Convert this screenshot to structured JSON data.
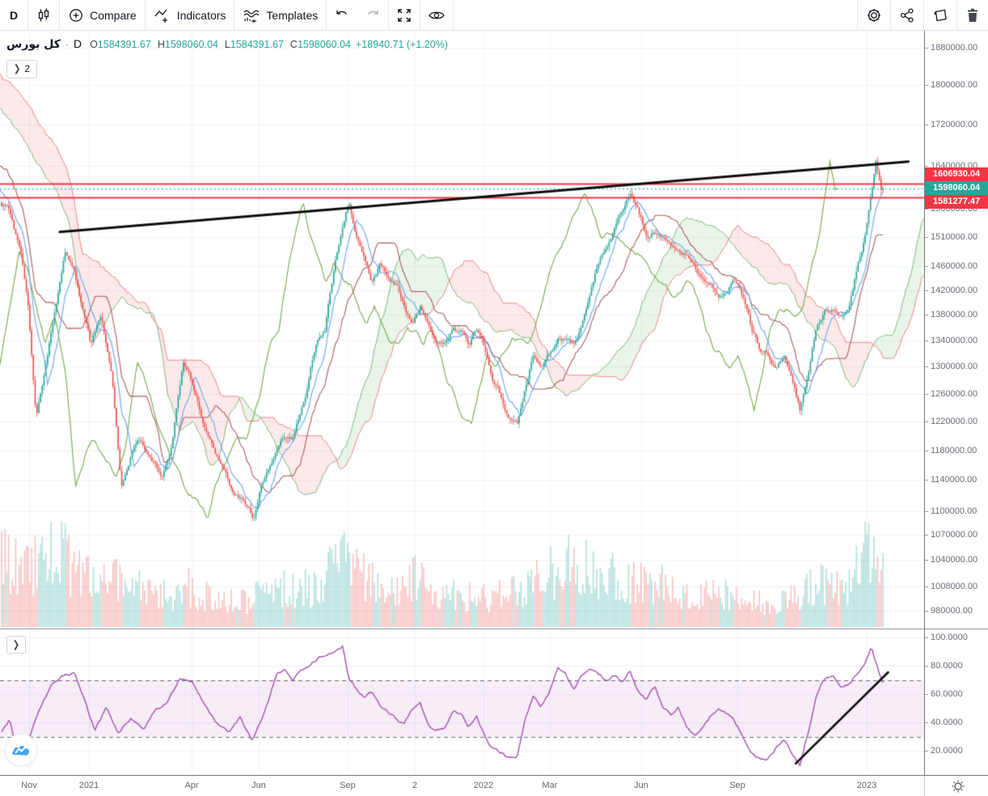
{
  "toolbar": {
    "interval": "D",
    "compare_label": "Compare",
    "indicators_label": "Indicators",
    "templates_label": "Templates"
  },
  "legend": {
    "symbol": "كل بورس",
    "separator": "·",
    "interval": "D",
    "open_label": "O",
    "open": "1584391.67",
    "high_label": "H",
    "high": "1598060.04",
    "low_label": "L",
    "low": "1584391.67",
    "close_label": "C",
    "close": "1598060.04",
    "change": "+18940.71 (+1.20%)",
    "collapsed_count": "2",
    "collapse_arrow": "❯"
  },
  "colors": {
    "up": "#26a69a",
    "down": "#ef5350",
    "volume_up": "rgba(38,166,154,0.34)",
    "volume_down": "rgba(239,83,80,0.34)",
    "tenkan": "#74abf2",
    "kijun": "#ad5c5c",
    "chikou": "#73a948",
    "cloud_up_fill": "rgba(120,190,116,0.16)",
    "cloud_up_border": "rgba(96,168,90,0.8)",
    "cloud_down_fill": "rgba(243,116,116,0.16)",
    "cloud_down_border": "rgba(234,102,102,0.8)",
    "level_line": "#f23645",
    "current_line": "#26a69a",
    "rsi_line": "#a64fae",
    "rsi_band_fill": "rgba(166,79,174,0.10)",
    "rsi_band_line": "#6a6d78",
    "trendline": "#0c0c0c",
    "grid": "#eef2f9",
    "axis_text": "#686d78",
    "label_level_bg": "#f23645",
    "label_current_bg": "#26a69a"
  },
  "axes": {
    "price_ticks": [
      [
        "1880000.00",
        1880000
      ],
      [
        "1800000.00",
        1800000
      ],
      [
        "1720000.00",
        1720000
      ],
      [
        "1640000.00",
        1640000
      ],
      [
        "1560000.00",
        1560000
      ],
      [
        "1510000.00",
        1510000
      ],
      [
        "1460000.00",
        1460000
      ],
      [
        "1420000.00",
        1420000
      ],
      [
        "1380000.00",
        1380000
      ],
      [
        "1340000.00",
        1340000
      ],
      [
        "1300000.00",
        1300000
      ],
      [
        "1260000.00",
        1260000
      ],
      [
        "1220000.00",
        1220000
      ],
      [
        "1180000.00",
        1180000
      ],
      [
        "1140000.00",
        1140000
      ],
      [
        "1100000.00",
        1100000
      ],
      [
        "1070000.00",
        1070000
      ],
      [
        "1040000.00",
        1040000
      ],
      [
        "1008000.00",
        1008000
      ],
      [
        "980000.00",
        980000
      ]
    ],
    "rsi_ticks": [
      [
        "100.0000",
        100
      ],
      [
        "80.0000",
        80
      ],
      [
        "60.0000",
        60
      ],
      [
        "40.0000",
        40
      ],
      [
        "20.0000",
        20
      ]
    ],
    "time_ticks": [
      [
        "Nov",
        36
      ],
      [
        "2021",
        110
      ],
      [
        "Apr",
        237
      ],
      [
        "Jun",
        320
      ],
      [
        "Sep",
        430
      ],
      [
        "2",
        513
      ],
      [
        "2022",
        598
      ],
      [
        "Mar",
        680
      ],
      [
        "Jun",
        793
      ],
      [
        "Sep",
        912
      ],
      [
        "2023",
        1072
      ]
    ]
  },
  "price_labels": [
    {
      "text": "1606930.04",
      "price": 1606930.04,
      "type": "level"
    },
    {
      "text": "1598060.04",
      "price": 1598060.04,
      "type": "current"
    },
    {
      "text": "1581277.47",
      "price": 1581277.47,
      "type": "level"
    }
  ],
  "chart_data": {
    "type": "candlestick",
    "symbol": "كل بورس",
    "interval": "D",
    "scale": "log",
    "overlays": [
      "ichimoku-cloud",
      "volume"
    ],
    "lower_pane": "rsi",
    "price_axis_visible_range": [
      962000,
      1900000
    ],
    "rsi_axis_visible_range": [
      4,
      103
    ],
    "rsi_band": [
      30,
      70
    ],
    "ohlc_last": {
      "open": 1584391.67,
      "high": 1598060.04,
      "low": 1584391.67,
      "close": 1598060.04,
      "change": 18940.71,
      "change_pct": 1.2
    },
    "horizontal_lines": [
      {
        "price": 1606930.04,
        "style": "solid",
        "role": "resistance"
      },
      {
        "price": 1581277.47,
        "style": "solid",
        "role": "support"
      },
      {
        "price": 1598060.04,
        "style": "dashed",
        "role": "last-price"
      }
    ],
    "trendlines": [
      {
        "pane": "main",
        "points": [
          [
            0.066,
            1519000
          ],
          [
            1.029,
            1648000
          ]
        ]
      },
      {
        "pane": "rsi",
        "points": [
          [
            0.901,
            10.9
          ],
          [
            1.006,
            75.4
          ]
        ]
      }
    ],
    "close_path": [
      [
        0.005,
        1590000
      ],
      [
        0.012,
        1560000
      ],
      [
        0.021,
        1505000
      ],
      [
        0.03,
        1410000
      ],
      [
        0.039,
        1235000
      ],
      [
        0.049,
        1300000
      ],
      [
        0.058,
        1370000
      ],
      [
        0.072,
        1480000
      ],
      [
        0.081,
        1455000
      ],
      [
        0.09,
        1400000
      ],
      [
        0.101,
        1330000
      ],
      [
        0.113,
        1380000
      ],
      [
        0.125,
        1290000
      ],
      [
        0.136,
        1135000
      ],
      [
        0.147,
        1180000
      ],
      [
        0.156,
        1195000
      ],
      [
        0.168,
        1170000
      ],
      [
        0.182,
        1150000
      ],
      [
        0.193,
        1192000
      ],
      [
        0.206,
        1310000
      ],
      [
        0.218,
        1270000
      ],
      [
        0.232,
        1210000
      ],
      [
        0.246,
        1170000
      ],
      [
        0.26,
        1125000
      ],
      [
        0.275,
        1110000
      ],
      [
        0.286,
        1090000
      ],
      [
        0.294,
        1135000
      ],
      [
        0.307,
        1172000
      ],
      [
        0.319,
        1196000
      ],
      [
        0.33,
        1190000
      ],
      [
        0.344,
        1250000
      ],
      [
        0.356,
        1335000
      ],
      [
        0.367,
        1368000
      ],
      [
        0.378,
        1470000
      ],
      [
        0.387,
        1540000
      ],
      [
        0.394,
        1585000
      ],
      [
        0.402,
        1520000
      ],
      [
        0.411,
        1475000
      ],
      [
        0.42,
        1432000
      ],
      [
        0.429,
        1460000
      ],
      [
        0.438,
        1445000
      ],
      [
        0.448,
        1430000
      ],
      [
        0.457,
        1390000
      ],
      [
        0.466,
        1365000
      ],
      [
        0.475,
        1390000
      ],
      [
        0.484,
        1360000
      ],
      [
        0.493,
        1335000
      ],
      [
        0.502,
        1330000
      ],
      [
        0.512,
        1362000
      ],
      [
        0.521,
        1355000
      ],
      [
        0.53,
        1335000
      ],
      [
        0.539,
        1362000
      ],
      [
        0.548,
        1330000
      ],
      [
        0.557,
        1290000
      ],
      [
        0.567,
        1262000
      ],
      [
        0.576,
        1230000
      ],
      [
        0.585,
        1218000
      ],
      [
        0.594,
        1270000
      ],
      [
        0.603,
        1320000
      ],
      [
        0.612,
        1300000
      ],
      [
        0.622,
        1322000
      ],
      [
        0.631,
        1345000
      ],
      [
        0.64,
        1340000
      ],
      [
        0.649,
        1325000
      ],
      [
        0.658,
        1360000
      ],
      [
        0.667,
        1408000
      ],
      [
        0.677,
        1465000
      ],
      [
        0.686,
        1495000
      ],
      [
        0.695,
        1525000
      ],
      [
        0.704,
        1560000
      ],
      [
        0.713,
        1588000
      ],
      [
        0.722,
        1555000
      ],
      [
        0.732,
        1512000
      ],
      [
        0.741,
        1525000
      ],
      [
        0.75,
        1512000
      ],
      [
        0.759,
        1500000
      ],
      [
        0.768,
        1488000
      ],
      [
        0.778,
        1476000
      ],
      [
        0.787,
        1460000
      ],
      [
        0.796,
        1442000
      ],
      [
        0.805,
        1435000
      ],
      [
        0.814,
        1422000
      ],
      [
        0.823,
        1438000
      ],
      [
        0.833,
        1445000
      ],
      [
        0.842,
        1412000
      ],
      [
        0.851,
        1360000
      ],
      [
        0.86,
        1330000
      ],
      [
        0.869,
        1318000
      ],
      [
        0.879,
        1298000
      ],
      [
        0.888,
        1318000
      ],
      [
        0.897,
        1288000
      ],
      [
        0.906,
        1238000
      ],
      [
        0.915,
        1296000
      ],
      [
        0.924,
        1366000
      ],
      [
        0.933,
        1392000
      ],
      [
        0.943,
        1398000
      ],
      [
        0.952,
        1392000
      ],
      [
        0.961,
        1405000
      ],
      [
        0.97,
        1460000
      ],
      [
        0.98,
        1518000
      ],
      [
        0.987,
        1588000
      ],
      [
        0.992,
        1640000
      ],
      [
        0.998,
        1585000
      ],
      [
        1.0,
        1598060
      ]
    ],
    "rsi_path": [
      [
        0.0,
        33
      ],
      [
        0.009,
        42
      ],
      [
        0.018,
        16
      ],
      [
        0.028,
        25
      ],
      [
        0.041,
        47
      ],
      [
        0.055,
        65
      ],
      [
        0.069,
        73
      ],
      [
        0.083,
        74
      ],
      [
        0.092,
        59
      ],
      [
        0.106,
        33
      ],
      [
        0.119,
        50
      ],
      [
        0.133,
        30
      ],
      [
        0.147,
        42
      ],
      [
        0.161,
        33
      ],
      [
        0.174,
        47
      ],
      [
        0.188,
        53
      ],
      [
        0.202,
        70
      ],
      [
        0.216,
        67
      ],
      [
        0.229,
        53
      ],
      [
        0.243,
        39
      ],
      [
        0.257,
        33
      ],
      [
        0.271,
        45
      ],
      [
        0.284,
        27
      ],
      [
        0.298,
        47
      ],
      [
        0.312,
        73
      ],
      [
        0.321,
        76
      ],
      [
        0.33,
        67
      ],
      [
        0.339,
        76
      ],
      [
        0.349,
        79
      ],
      [
        0.358,
        84
      ],
      [
        0.367,
        88
      ],
      [
        0.376,
        91
      ],
      [
        0.387,
        94
      ],
      [
        0.394,
        72
      ],
      [
        0.404,
        64
      ],
      [
        0.413,
        60
      ],
      [
        0.42,
        63
      ],
      [
        0.429,
        52
      ],
      [
        0.438,
        48
      ],
      [
        0.448,
        42
      ],
      [
        0.457,
        38
      ],
      [
        0.466,
        48
      ],
      [
        0.475,
        53
      ],
      [
        0.484,
        40
      ],
      [
        0.493,
        35
      ],
      [
        0.502,
        38
      ],
      [
        0.512,
        50
      ],
      [
        0.521,
        46
      ],
      [
        0.53,
        36
      ],
      [
        0.539,
        44
      ],
      [
        0.548,
        30
      ],
      [
        0.557,
        22
      ],
      [
        0.567,
        18
      ],
      [
        0.576,
        14
      ],
      [
        0.585,
        16
      ],
      [
        0.594,
        42
      ],
      [
        0.603,
        58
      ],
      [
        0.612,
        50
      ],
      [
        0.622,
        60
      ],
      [
        0.631,
        76
      ],
      [
        0.64,
        73
      ],
      [
        0.649,
        62
      ],
      [
        0.658,
        72
      ],
      [
        0.667,
        78
      ],
      [
        0.677,
        74
      ],
      [
        0.686,
        70
      ],
      [
        0.695,
        73
      ],
      [
        0.704,
        70
      ],
      [
        0.713,
        77
      ],
      [
        0.722,
        62
      ],
      [
        0.732,
        55
      ],
      [
        0.741,
        64
      ],
      [
        0.75,
        50
      ],
      [
        0.759,
        44
      ],
      [
        0.768,
        52
      ],
      [
        0.778,
        38
      ],
      [
        0.787,
        30
      ],
      [
        0.796,
        36
      ],
      [
        0.805,
        44
      ],
      [
        0.814,
        48
      ],
      [
        0.823,
        46
      ],
      [
        0.833,
        38
      ],
      [
        0.842,
        28
      ],
      [
        0.851,
        20
      ],
      [
        0.86,
        15
      ],
      [
        0.869,
        12
      ],
      [
        0.879,
        22
      ],
      [
        0.888,
        26
      ],
      [
        0.897,
        18
      ],
      [
        0.906,
        10
      ],
      [
        0.915,
        33
      ],
      [
        0.924,
        56
      ],
      [
        0.933,
        70
      ],
      [
        0.943,
        72
      ],
      [
        0.952,
        64
      ],
      [
        0.961,
        66
      ],
      [
        0.97,
        74
      ],
      [
        0.98,
        82
      ],
      [
        0.987,
        93
      ],
      [
        0.995,
        76
      ],
      [
        1.0,
        67
      ]
    ],
    "volume_path": [
      [
        0.005,
        0.75
      ],
      [
        0.018,
        0.55
      ],
      [
        0.032,
        0.6
      ],
      [
        0.046,
        0.65
      ],
      [
        0.06,
        0.95
      ],
      [
        0.073,
        0.7
      ],
      [
        0.087,
        0.5
      ],
      [
        0.101,
        0.55
      ],
      [
        0.115,
        0.45
      ],
      [
        0.128,
        0.5
      ],
      [
        0.142,
        0.35
      ],
      [
        0.156,
        0.4
      ],
      [
        0.17,
        0.3
      ],
      [
        0.183,
        0.35
      ],
      [
        0.197,
        0.3
      ],
      [
        0.211,
        0.4
      ],
      [
        0.225,
        0.3
      ],
      [
        0.239,
        0.35
      ],
      [
        0.252,
        0.3
      ],
      [
        0.266,
        0.25
      ],
      [
        0.28,
        0.28
      ],
      [
        0.294,
        0.32
      ],
      [
        0.307,
        0.3
      ],
      [
        0.321,
        0.4
      ],
      [
        0.335,
        0.35
      ],
      [
        0.349,
        0.4
      ],
      [
        0.362,
        0.45
      ],
      [
        0.376,
        0.55
      ],
      [
        0.39,
        0.65
      ],
      [
        0.404,
        0.55
      ],
      [
        0.417,
        0.45
      ],
      [
        0.431,
        0.42
      ],
      [
        0.445,
        0.4
      ],
      [
        0.459,
        0.38
      ],
      [
        0.472,
        0.5
      ],
      [
        0.486,
        0.35
      ],
      [
        0.5,
        0.3
      ],
      [
        0.514,
        0.32
      ],
      [
        0.528,
        0.3
      ],
      [
        0.541,
        0.28
      ],
      [
        0.555,
        0.3
      ],
      [
        0.569,
        0.32
      ],
      [
        0.583,
        0.35
      ],
      [
        0.596,
        0.4
      ],
      [
        0.61,
        0.45
      ],
      [
        0.624,
        0.55
      ],
      [
        0.638,
        0.6
      ],
      [
        0.651,
        0.62
      ],
      [
        0.665,
        0.6
      ],
      [
        0.679,
        0.58
      ],
      [
        0.693,
        0.55
      ],
      [
        0.706,
        0.5
      ],
      [
        0.72,
        0.45
      ],
      [
        0.734,
        0.4
      ],
      [
        0.748,
        0.42
      ],
      [
        0.761,
        0.38
      ],
      [
        0.775,
        0.35
      ],
      [
        0.789,
        0.33
      ],
      [
        0.803,
        0.3
      ],
      [
        0.817,
        0.35
      ],
      [
        0.83,
        0.3
      ],
      [
        0.844,
        0.28
      ],
      [
        0.858,
        0.25
      ],
      [
        0.872,
        0.22
      ],
      [
        0.885,
        0.25
      ],
      [
        0.899,
        0.28
      ],
      [
        0.913,
        0.35
      ],
      [
        0.927,
        0.45
      ],
      [
        0.94,
        0.4
      ],
      [
        0.954,
        0.35
      ],
      [
        0.968,
        0.5
      ],
      [
        0.982,
        0.85
      ],
      [
        0.991,
        0.9
      ],
      [
        1.0,
        0.6
      ]
    ]
  }
}
